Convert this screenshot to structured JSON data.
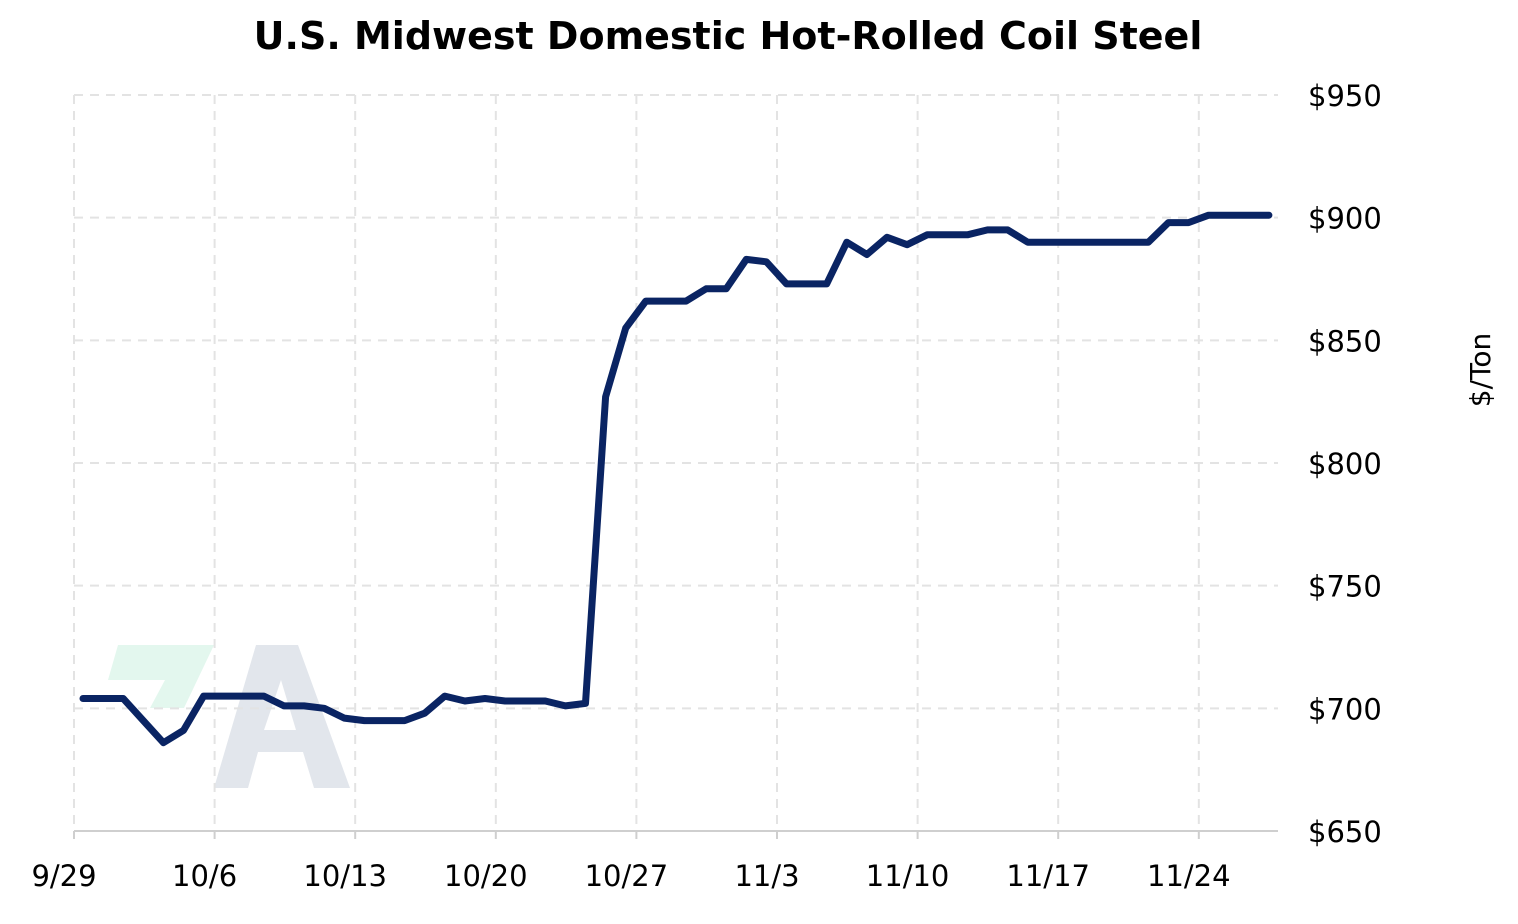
{
  "chart_data": {
    "type": "line",
    "title": "U.S. Midwest Domestic Hot-Rolled Coil Steel",
    "xlabel": "",
    "ylabel": "$/Ton",
    "y_axis_side": "right",
    "ylim": [
      650,
      950
    ],
    "yticks": [
      650,
      700,
      750,
      800,
      850,
      900,
      950
    ],
    "ytick_labels": [
      "$650",
      "$700",
      "$750",
      "$800",
      "$850",
      "$900",
      "$950"
    ],
    "xtick_labels": [
      "9/29",
      "10/6",
      "10/13",
      "10/20",
      "10/27",
      "11/3",
      "11/10",
      "11/17",
      "11/24"
    ],
    "x_start": "9/29",
    "x_end": "11/27",
    "grid": true,
    "legend": "none",
    "line_color": "#0a2463",
    "watermark": "FA logo",
    "series": [
      {
        "x": [
          "9/29",
          "9/30",
          "10/1",
          "10/2",
          "10/3",
          "10/4",
          "10/5",
          "10/6",
          "10/7",
          "10/8",
          "10/9",
          "10/10",
          "10/11",
          "10/12",
          "10/13",
          "10/14",
          "10/15",
          "10/16",
          "10/17",
          "10/18",
          "10/19",
          "10/20",
          "10/21",
          "10/22",
          "10/23",
          "10/24",
          "10/25",
          "10/26",
          "10/27",
          "10/28",
          "10/29",
          "10/30",
          "10/31",
          "11/1",
          "11/2",
          "11/3",
          "11/4",
          "11/5",
          "11/6",
          "11/7",
          "11/8",
          "11/9",
          "11/10",
          "11/11",
          "11/12",
          "11/13",
          "11/14",
          "11/15",
          "11/16",
          "11/17",
          "11/18",
          "11/19",
          "11/20",
          "11/21",
          "11/22",
          "11/23",
          "11/24",
          "11/25",
          "11/26",
          "11/27"
        ],
        "values": [
          704,
          704,
          704,
          695,
          686,
          691,
          705,
          705,
          705,
          705,
          701,
          701,
          700,
          696,
          695,
          695,
          695,
          698,
          705,
          703,
          704,
          703,
          703,
          703,
          701,
          702,
          827,
          855,
          866,
          866,
          866,
          871,
          871,
          883,
          882,
          873,
          873,
          873,
          890,
          885,
          892,
          889,
          893,
          893,
          893,
          895,
          895,
          890,
          890,
          890,
          890,
          890,
          890,
          890,
          898,
          898,
          901,
          901,
          901,
          901
        ]
      }
    ]
  }
}
